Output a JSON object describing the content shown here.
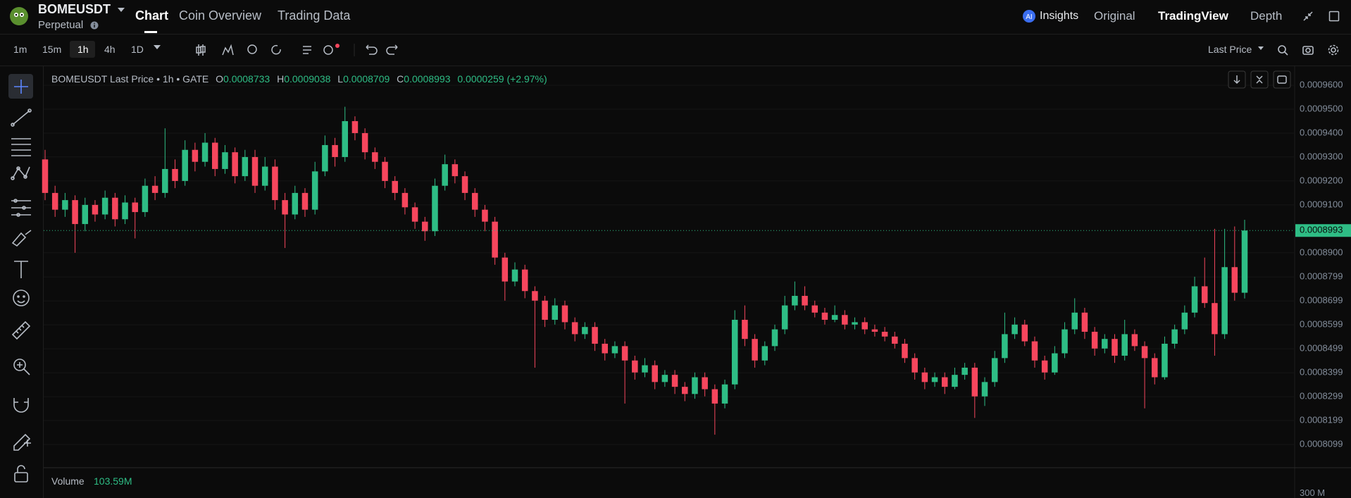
{
  "header": {
    "symbol": "BOMEUSDT",
    "contract": "Perpetual",
    "tabs": [
      "Chart",
      "Coin Overview",
      "Trading Data"
    ],
    "nav": [
      "Insights",
      "Original",
      "TradingView",
      "Depth"
    ]
  },
  "toolbar": {
    "intervals": [
      "1m",
      "15m",
      "1h",
      "4h",
      "1D"
    ],
    "price_type": "Last Price"
  },
  "chart_data": {
    "type": "candlestick",
    "legend": {
      "title": "BOMEUSDT Last Price • 1h • GATE",
      "items": [
        {
          "key": "O",
          "text": "0.0008733"
        },
        {
          "key": "H",
          "text": "0.0009038"
        },
        {
          "key": "L",
          "text": "0.0008709"
        },
        {
          "key": "C",
          "text": "0.0008993"
        }
      ],
      "change": "0.0000259 (+2.97%)"
    },
    "up_color": "#2ebd85",
    "down_color": "#f6465d",
    "ylim": [
      0.0008002,
      0.00096765
    ],
    "yticks": [
      {
        "value": 0.00096,
        "label": "0.0009600"
      },
      {
        "value": 0.00095,
        "label": "0.0009500"
      },
      {
        "value": 0.00094,
        "label": "0.0009400"
      },
      {
        "value": 0.00093,
        "label": "0.0009300"
      },
      {
        "value": 0.00092,
        "label": "0.0009200"
      },
      {
        "value": 0.00091,
        "label": "0.0009100"
      },
      {
        "value": 0.00089,
        "label": "0.0008900"
      },
      {
        "value": 0.0008799,
        "label": "0.0008799"
      },
      {
        "value": 0.0008699,
        "label": "0.0008699"
      },
      {
        "value": 0.0008599,
        "label": "0.0008599"
      },
      {
        "value": 0.0008499,
        "label": "0.0008499"
      },
      {
        "value": 0.0008399,
        "label": "0.0008399"
      },
      {
        "value": 0.0008299,
        "label": "0.0008299"
      },
      {
        "value": 0.0008199,
        "label": "0.0008199"
      },
      {
        "value": 0.0008099,
        "label": "0.0008099"
      }
    ],
    "last_price": {
      "value": 0.0008993,
      "label": "0.0008993"
    },
    "open": [
      0.000929,
      0.000915,
      0.000908,
      0.000912,
      0.000902,
      0.00091,
      0.000906,
      0.000913,
      0.000904,
      0.000911,
      0.000907,
      0.000918,
      0.000915,
      0.000925,
      0.00092,
      0.000933,
      0.000928,
      0.000936,
      0.000925,
      0.000932,
      0.000922,
      0.00093,
      0.000918,
      0.000926,
      0.000912,
      0.000906,
      0.000915,
      0.000908,
      0.000924,
      0.000935,
      0.00093,
      0.000945,
      0.00094,
      0.000932,
      0.000928,
      0.00092,
      0.000915,
      0.000909,
      0.000903,
      0.000899,
      0.000918,
      0.000927,
      0.000922,
      0.000915,
      0.000908,
      0.000903,
      0.000888,
      0.000878,
      0.000883,
      0.000874,
      0.00087,
      0.000862,
      0.000868,
      0.000861,
      0.000856,
      0.000859,
      0.000852,
      0.000848,
      0.000851,
      0.000845,
      0.00084,
      0.000843,
      0.000836,
      0.000839,
      0.000834,
      0.000831,
      0.000838,
      0.000833,
      0.000827,
      0.000835,
      0.000862,
      0.000854,
      0.000845,
      0.000851,
      0.000858,
      0.000868,
      0.000872,
      0.000868,
      0.000865,
      0.000862,
      0.000864,
      0.00086,
      0.000861,
      0.000858,
      0.000857,
      0.000855,
      0.000852,
      0.000846,
      0.00084,
      0.000836,
      0.000838,
      0.000834,
      0.000839,
      0.000842,
      0.00083,
      0.000836,
      0.000846,
      0.000856,
      0.00086,
      0.000853,
      0.000845,
      0.00084,
      0.000848,
      0.000858,
      0.000865,
      0.000857,
      0.00085,
      0.000854,
      0.000847,
      0.000856,
      0.000851,
      0.000846,
      0.000838,
      0.000852,
      0.000858,
      0.000865,
      0.000876,
      0.000869,
      0.000856,
      0.000884,
      0.0008733
    ],
    "high": [
      0.000933,
      0.000918,
      0.000915,
      0.000914,
      0.000913,
      0.000912,
      0.000916,
      0.000915,
      0.000914,
      0.000913,
      0.000921,
      0.000922,
      0.000942,
      0.000929,
      0.000937,
      0.000936,
      0.00094,
      0.000938,
      0.000935,
      0.000934,
      0.000933,
      0.000933,
      0.00093,
      0.000929,
      0.000915,
      0.000918,
      0.000917,
      0.000928,
      0.000939,
      0.000938,
      0.000951,
      0.000947,
      0.000942,
      0.000934,
      0.00093,
      0.000922,
      0.000917,
      0.000911,
      0.000905,
      0.000921,
      0.000931,
      0.000929,
      0.000924,
      0.000917,
      0.00091,
      0.000905,
      0.00089,
      0.000886,
      0.000885,
      0.000876,
      0.000872,
      0.000871,
      0.00087,
      0.000863,
      0.000861,
      0.000861,
      0.000854,
      0.000853,
      0.000853,
      0.000847,
      0.000846,
      0.000845,
      0.000841,
      0.000841,
      0.000836,
      0.00084,
      0.00084,
      0.000835,
      0.000837,
      0.000866,
      0.000868,
      0.000856,
      0.000853,
      0.00086,
      0.000872,
      0.000878,
      0.000876,
      0.00087,
      0.000867,
      0.000868,
      0.000866,
      0.000863,
      0.000863,
      0.00086,
      0.000859,
      0.000857,
      0.000854,
      0.000848,
      0.000842,
      0.00084,
      0.00084,
      0.000842,
      0.000844,
      0.000844,
      0.000838,
      0.000849,
      0.000865,
      0.000863,
      0.000862,
      0.000855,
      0.000847,
      0.000851,
      0.000861,
      0.000871,
      0.000867,
      0.000859,
      0.000856,
      0.000856,
      0.000862,
      0.000858,
      0.000853,
      0.000848,
      0.000855,
      0.00086,
      0.000868,
      0.00088,
      0.000888,
      0.0009,
      0.0009,
      0.000901,
      0.0009038
    ],
    "low": [
      0.000912,
      0.000905,
      0.000905,
      0.00089,
      0.000899,
      0.000903,
      0.000904,
      0.000901,
      0.000902,
      0.000896,
      0.000905,
      0.000912,
      0.000913,
      0.000917,
      0.000918,
      0.000924,
      0.000926,
      0.000922,
      0.000923,
      0.000919,
      0.00092,
      0.000915,
      0.000916,
      0.000908,
      0.000892,
      0.000904,
      0.000905,
      0.000906,
      0.000922,
      0.000926,
      0.000928,
      0.000937,
      0.000929,
      0.000925,
      0.000917,
      0.000912,
      0.000906,
      0.0009,
      0.000895,
      0.000897,
      0.000916,
      0.000919,
      0.000912,
      0.000905,
      0.000899,
      0.000885,
      0.00087,
      0.000876,
      0.000871,
      0.000842,
      0.000859,
      0.00086,
      0.000858,
      0.000853,
      0.000854,
      0.000849,
      0.000845,
      0.000846,
      0.000827,
      0.000837,
      0.000838,
      0.000833,
      0.000834,
      0.000831,
      0.000828,
      0.000829,
      0.00083,
      0.000814,
      0.000825,
      0.000833,
      0.000851,
      0.000842,
      0.000843,
      0.000849,
      0.000856,
      0.000866,
      0.000866,
      0.000863,
      0.00086,
      0.000861,
      0.000858,
      0.000858,
      0.000856,
      0.000855,
      0.000853,
      0.00085,
      0.000844,
      0.000837,
      0.000833,
      0.000834,
      0.000831,
      0.000833,
      0.000837,
      0.000821,
      0.000826,
      0.000834,
      0.000844,
      0.000854,
      0.000851,
      0.000842,
      0.000837,
      0.000839,
      0.000846,
      0.000856,
      0.000854,
      0.000847,
      0.000848,
      0.000844,
      0.000845,
      0.000849,
      0.000825,
      0.000835,
      0.000837,
      0.00085,
      0.000856,
      0.000863,
      0.000867,
      0.000847,
      0.000854,
      0.00087,
      0.0008709
    ],
    "close": [
      0.000915,
      0.000908,
      0.000912,
      0.000902,
      0.00091,
      0.000906,
      0.000913,
      0.000904,
      0.000911,
      0.000907,
      0.000918,
      0.000915,
      0.000925,
      0.00092,
      0.000933,
      0.000928,
      0.000936,
      0.000925,
      0.000932,
      0.000922,
      0.00093,
      0.000918,
      0.000926,
      0.000912,
      0.000906,
      0.000915,
      0.000908,
      0.000924,
      0.000935,
      0.00093,
      0.000945,
      0.00094,
      0.000932,
      0.000928,
      0.00092,
      0.000915,
      0.000909,
      0.000903,
      0.000899,
      0.000918,
      0.000927,
      0.000922,
      0.000915,
      0.000908,
      0.000903,
      0.000888,
      0.000878,
      0.000883,
      0.000874,
      0.00087,
      0.000862,
      0.000868,
      0.000861,
      0.000856,
      0.000859,
      0.000852,
      0.000848,
      0.000851,
      0.000845,
      0.00084,
      0.000843,
      0.000836,
      0.000839,
      0.000834,
      0.000831,
      0.000838,
      0.000833,
      0.000827,
      0.000835,
      0.000862,
      0.000854,
      0.000845,
      0.000851,
      0.000858,
      0.000868,
      0.000872,
      0.000868,
      0.000865,
      0.000862,
      0.000864,
      0.00086,
      0.000861,
      0.000858,
      0.000857,
      0.000855,
      0.000852,
      0.000846,
      0.00084,
      0.000836,
      0.000838,
      0.000834,
      0.000839,
      0.000842,
      0.00083,
      0.000836,
      0.000846,
      0.000856,
      0.00086,
      0.000853,
      0.000845,
      0.00084,
      0.000848,
      0.000858,
      0.000865,
      0.000857,
      0.00085,
      0.000854,
      0.000847,
      0.000856,
      0.000851,
      0.000846,
      0.000838,
      0.000852,
      0.000858,
      0.000865,
      0.000876,
      0.000869,
      0.000856,
      0.000884,
      0.0008733,
      0.0008993
    ],
    "volume": {
      "label": "Volume",
      "value": "103.59M",
      "tick": "300 M"
    }
  }
}
